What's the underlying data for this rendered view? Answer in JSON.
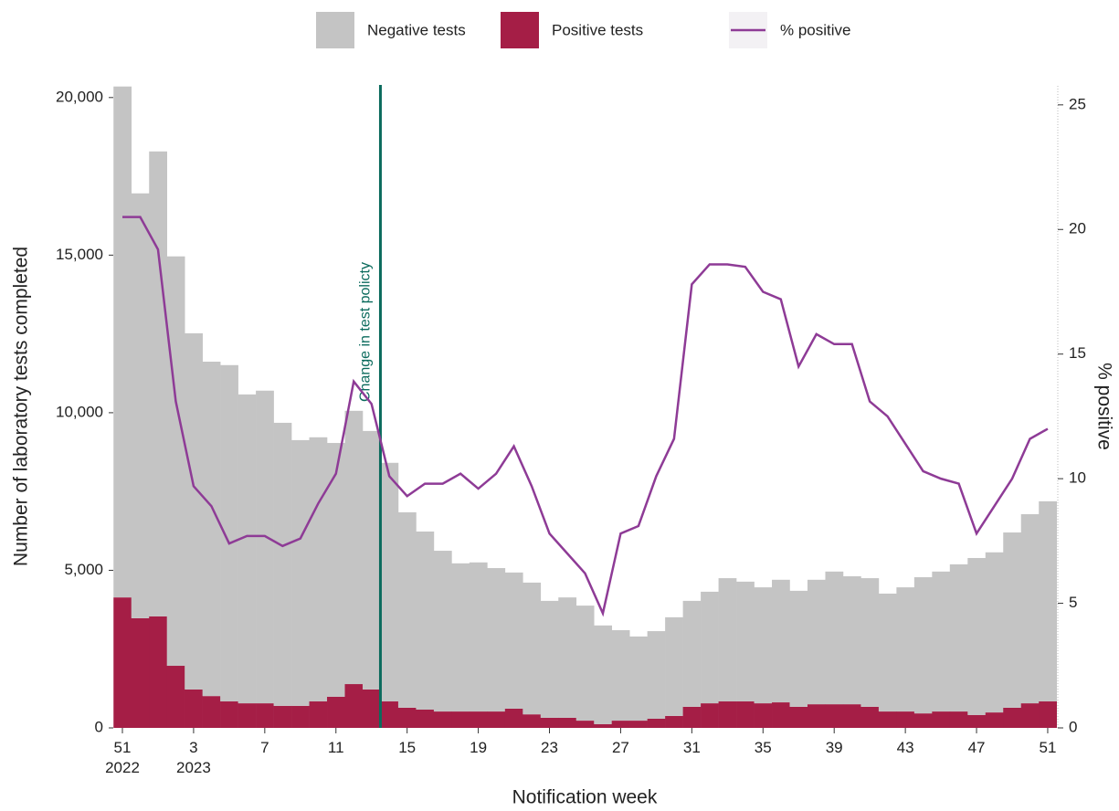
{
  "chart_data": {
    "type": "stacked_bar_line",
    "x_label": "Notification week",
    "y_label": "Number of laboratory tests completed",
    "y2_label": "% positive",
    "categories": [
      "51\n2022",
      null,
      null,
      null,
      "3\n2023",
      null,
      null,
      null,
      "7",
      null,
      null,
      null,
      "11",
      null,
      null,
      null,
      "15",
      null,
      null,
      null,
      "19",
      null,
      null,
      null,
      "23",
      null,
      null,
      null,
      "27",
      null,
      null,
      null,
      "31",
      null,
      null,
      null,
      "35",
      null,
      null,
      null,
      "39",
      null,
      null,
      null,
      "43",
      null,
      null,
      null,
      "47",
      null,
      null,
      null,
      "51"
    ],
    "series": [
      {
        "name": "Positive tests",
        "color": "#a51e46",
        "values": [
          4140,
          3480,
          3540,
          1970,
          1220,
          1010,
          840,
          780,
          780,
          700,
          700,
          840,
          990,
          1390,
          1220,
          840,
          640,
          580,
          520,
          520,
          520,
          520,
          610,
          430,
          320,
          320,
          230,
          120,
          230,
          230,
          290,
          380,
          670,
          780,
          840,
          840,
          780,
          810,
          670,
          750,
          750,
          750,
          670,
          520,
          520,
          460,
          520,
          520,
          410,
          490,
          640,
          780,
          840
        ]
      },
      {
        "name": "Negative tests",
        "color": "#c4c4c4",
        "values": [
          16210,
          13480,
          14750,
          12990,
          11300,
          10610,
          10670,
          9800,
          9920,
          8980,
          8430,
          8380,
          8050,
          8670,
          8200,
          7570,
          6200,
          5650,
          5100,
          4700,
          4730,
          4550,
          4320,
          4180,
          3710,
          3820,
          3650,
          3130,
          2870,
          2670,
          2780,
          3130,
          3360,
          3540,
          3910,
          3800,
          3680,
          3890,
          3680,
          3950,
          4210,
          4060,
          4080,
          3740,
          3940,
          4320,
          4440,
          4670,
          4980,
          5080,
          5560,
          6000,
          6350
        ]
      },
      {
        "name": "% positive",
        "color": "#8e3b96",
        "axis": "y2",
        "values": [
          20.5,
          20.5,
          19.2,
          13.1,
          9.7,
          8.9,
          7.4,
          7.7,
          7.7,
          7.3,
          7.6,
          9.0,
          10.2,
          13.9,
          13.0,
          10.1,
          9.3,
          9.8,
          9.8,
          10.2,
          9.6,
          10.2,
          11.3,
          9.7,
          7.8,
          7.0,
          6.2,
          4.6,
          7.8,
          8.1,
          10.1,
          11.6,
          17.8,
          18.6,
          18.6,
          18.5,
          17.5,
          17.2,
          14.5,
          15.8,
          15.4,
          15.4,
          13.1,
          12.5,
          11.4,
          10.3,
          10.0,
          9.8,
          7.8,
          8.9,
          10.0,
          11.6,
          12.0
        ]
      }
    ],
    "legend_order": [
      "Negative tests",
      "Positive tests",
      "% positive"
    ],
    "ylim": [
      0,
      20400
    ],
    "yticks": [
      0,
      {
        "value": 5000,
        "label": "5,000"
      },
      {
        "value": 10000,
        "label": "10,000"
      },
      {
        "value": 15000,
        "label": "15,000"
      },
      {
        "value": 20000,
        "label": "20,000"
      }
    ],
    "y2lim": [
      0,
      25.8
    ],
    "y2ticks": [
      0,
      5,
      10,
      15,
      20,
      25
    ],
    "vline": {
      "label": "Change in test policty",
      "at": 14.5,
      "color": "#0b6b5d"
    },
    "legend": "top"
  }
}
